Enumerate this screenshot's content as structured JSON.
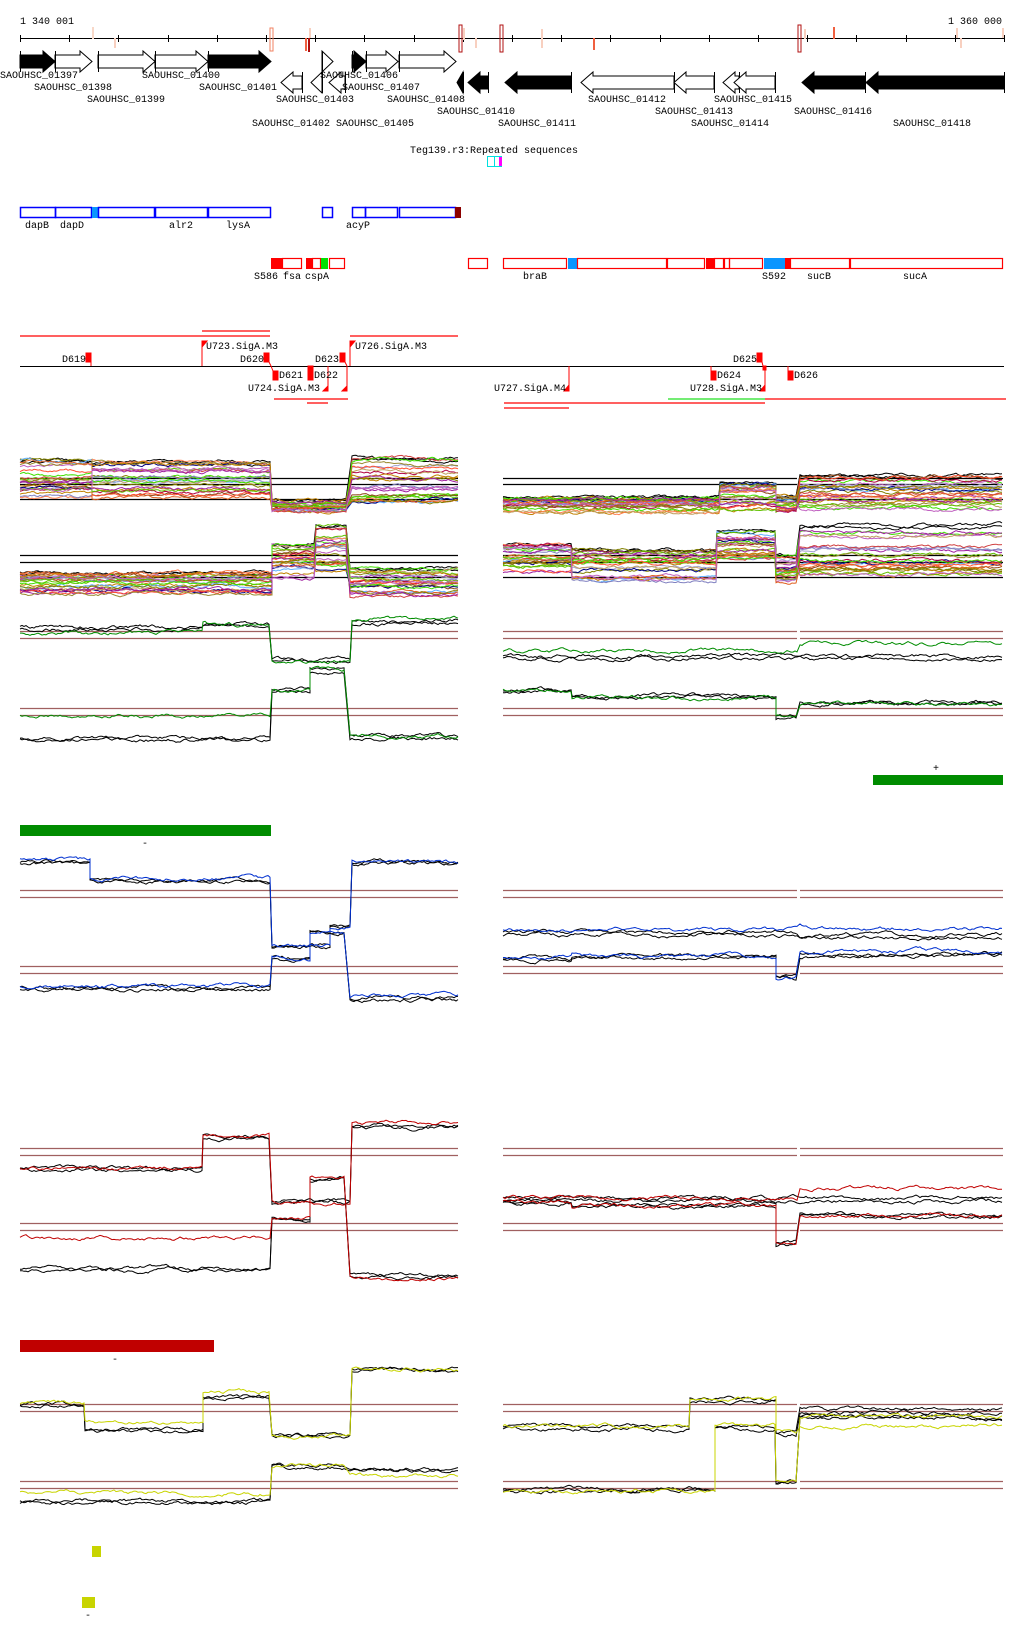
{
  "ruler": {
    "start_label": "1 340 001",
    "end_label": "1 360 000"
  },
  "genes": [
    {
      "label": "SAOUHSC_01397"
    },
    {
      "label": "SAOUHSC_01398"
    },
    {
      "label": "SAOUHSC_01399"
    },
    {
      "label": "SAOUHSC_01400"
    },
    {
      "label": "SAOUHSC_01401"
    },
    {
      "label": "SAOUHSC_01403"
    },
    {
      "label": "SAOUHSC_01402"
    },
    {
      "label": "SAOUHSC_01405"
    },
    {
      "label": "SAOUHSC_01406"
    },
    {
      "label": "SAOUHSC_01407"
    },
    {
      "label": "SAOUHSC_01408"
    },
    {
      "label": "SAOUHSC_01410"
    },
    {
      "label": "SAOUHSC_01411"
    },
    {
      "label": "SAOUHSC_01412"
    },
    {
      "label": "SAOUHSC_01413"
    },
    {
      "label": "SAOUHSC_01415"
    },
    {
      "label": "SAOUHSC_01414"
    },
    {
      "label": "SAOUHSC_01416"
    },
    {
      "label": "SAOUHSC_01418"
    }
  ],
  "repeats": {
    "label": "Teg139.r3:Repeated sequences"
  },
  "operons": {
    "labels": [
      "dapB",
      "dapD",
      "alr2",
      "lysA",
      "acyP"
    ]
  },
  "transcripts": {
    "labels": [
      "S586",
      "fsa",
      "cspA",
      "braB",
      "S592",
      "sucB",
      "sucA"
    ]
  },
  "regulation": {
    "labels": [
      "D619",
      "U723.SigA.M3",
      "D620",
      "D623",
      "U726.SigA.M3",
      "D621",
      "D622",
      "U724.SigA.M3",
      "U727.SigA.M4",
      "D625",
      "D624",
      "U728.SigA.M3",
      "D626"
    ]
  },
  "strand_marks": {
    "green_plus": "+",
    "green_minus": "-",
    "red_minus": "-",
    "yellow_minus": "-"
  },
  "colors": {
    "green": "#008c00",
    "blue": "#0030d0",
    "red": "#c00000",
    "yellow": "#c8d400",
    "darkred": "#c00000",
    "hline": "#a06060"
  }
}
